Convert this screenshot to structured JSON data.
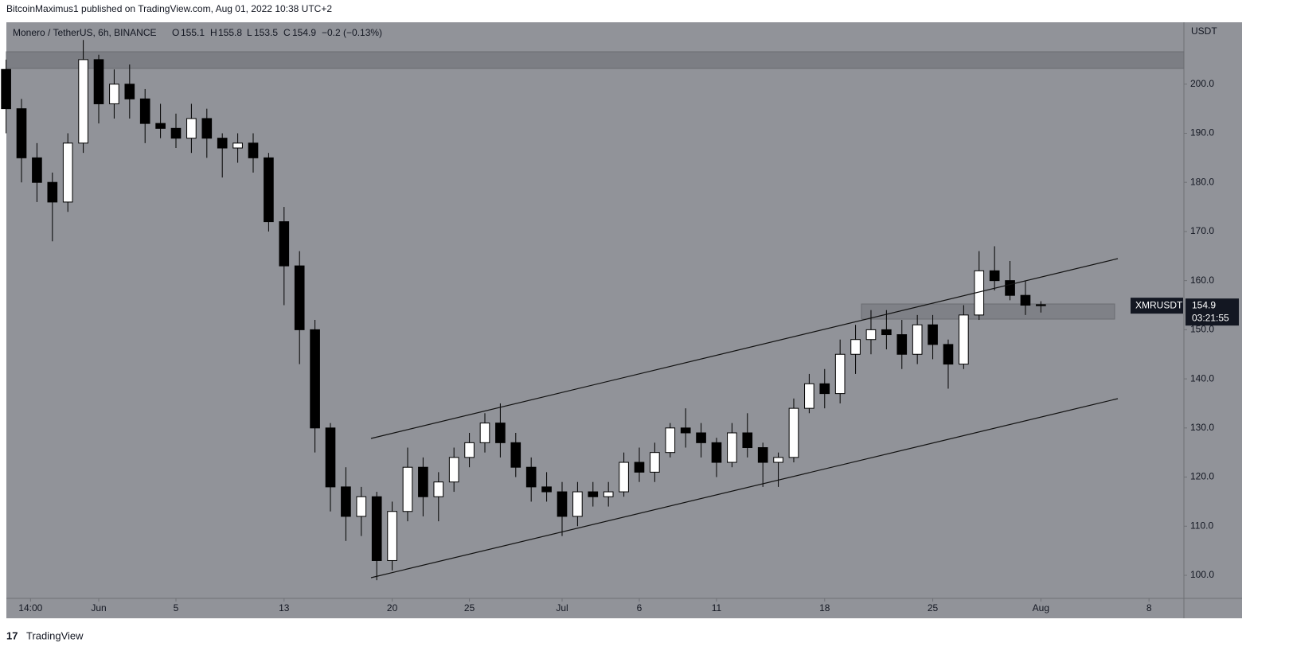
{
  "page": {
    "byline": "BitcoinMaximus1 published on TradingView.com, Aug 01, 2022 10:38 UTC+2",
    "footer": "TradingView"
  },
  "chart_data": {
    "type": "candlestick",
    "header": {
      "symbol": "Monero / TetherUS, 6h, BINANCE",
      "o_label": "O",
      "o": 155.1,
      "h_label": "H",
      "h": 155.8,
      "l_label": "L",
      "l": 153.5,
      "c_label": "C",
      "c": 154.9,
      "change": "−0.2 (−0.13%)"
    },
    "axis_unit": "USDT",
    "price_tag": {
      "symbol": "XMRUSDT",
      "price": 154.9,
      "countdown": "03:21:55"
    },
    "x": [
      -6,
      -5,
      -4,
      -3,
      -2,
      -1,
      0,
      1,
      2,
      3,
      4,
      5,
      6,
      7,
      8,
      9,
      10,
      11,
      12,
      13,
      14,
      15,
      16,
      17,
      18,
      19,
      20,
      21,
      22,
      23,
      24,
      25,
      26,
      27,
      28,
      29,
      30,
      31,
      32,
      33,
      34,
      35,
      36,
      37,
      38,
      39,
      40,
      41,
      42,
      43,
      44,
      45,
      46,
      47,
      48,
      49,
      50,
      51,
      52,
      53,
      54,
      55,
      56,
      57,
      58,
      59,
      60,
      61
    ],
    "open": [
      203,
      195,
      185,
      180,
      176,
      188,
      205,
      196,
      200,
      197,
      192,
      191,
      189,
      193,
      189,
      187,
      188,
      185,
      172,
      163,
      150,
      130,
      118,
      112,
      116,
      103,
      113,
      122,
      116,
      119,
      124,
      127,
      131,
      127,
      122,
      118,
      117,
      112,
      117,
      116,
      117,
      123,
      121,
      125,
      130,
      129,
      127,
      123,
      129,
      126,
      123,
      124,
      134,
      139,
      137,
      145,
      148,
      150,
      149,
      145,
      151,
      147,
      143,
      153,
      162,
      160,
      157,
      155.1
    ],
    "high": [
      205,
      197,
      188,
      182,
      190,
      209,
      206,
      203,
      204,
      199,
      196,
      194,
      196,
      195,
      190,
      190,
      190,
      186,
      175,
      166,
      152,
      131,
      122,
      118,
      117,
      115,
      126,
      124,
      121,
      126,
      129,
      133,
      135,
      129,
      124,
      121,
      119,
      119,
      119,
      119,
      125,
      126,
      127,
      131,
      134,
      131,
      128,
      131,
      133,
      127,
      125,
      136,
      141,
      142,
      148,
      151,
      154,
      154,
      152,
      153,
      153,
      148,
      155,
      166,
      167,
      164,
      160,
      155.8
    ],
    "low": [
      190,
      180,
      176,
      168,
      174,
      186,
      192,
      193,
      193,
      188,
      189,
      187,
      186,
      185,
      181,
      184,
      182,
      170,
      155,
      143,
      125,
      113,
      107,
      108,
      99,
      101,
      111,
      112,
      111,
      117,
      122,
      125,
      124,
      120,
      115,
      115,
      108,
      110,
      114,
      114,
      116,
      119,
      119,
      124,
      126,
      124,
      120,
      122,
      124,
      118,
      118,
      123,
      133,
      134,
      135,
      141,
      145,
      146,
      142,
      143,
      144,
      138,
      142,
      152,
      158,
      156,
      153,
      153.5
    ],
    "close": [
      195,
      185,
      180,
      176,
      188,
      205,
      196,
      200,
      197,
      192,
      191,
      189,
      193,
      189,
      187,
      188,
      185,
      172,
      163,
      150,
      130,
      118,
      112,
      116,
      103,
      113,
      122,
      116,
      119,
      124,
      127,
      131,
      127,
      122,
      118,
      117,
      112,
      117,
      116,
      117,
      123,
      121,
      125,
      130,
      129,
      127,
      123,
      129,
      126,
      123,
      124,
      134,
      139,
      137,
      145,
      148,
      150,
      149,
      145,
      151,
      147,
      143,
      153,
      162,
      160,
      157,
      155,
      154.9
    ],
    "up_color": "#ffffff",
    "down_color": "#000000",
    "xlim": [
      -5.98,
      70.26
    ],
    "xticks": [
      {
        "value": -4.4167,
        "label": "14:00"
      },
      {
        "value": 0,
        "label": "Jun"
      },
      5,
      {
        "value": 12,
        "label": "13"
      },
      {
        "value": 19,
        "label": "20"
      },
      {
        "value": 24,
        "label": "25"
      },
      {
        "value": 30,
        "label": "Jul"
      },
      {
        "value": 35,
        "label": "6"
      },
      {
        "value": 40,
        "label": "11"
      },
      {
        "value": 47,
        "label": "18"
      },
      {
        "value": 54,
        "label": "25"
      },
      {
        "value": 61,
        "label": "Aug"
      },
      {
        "value": 68,
        "label": "8"
      }
    ],
    "ylim": [
      95.3,
      212.6
    ],
    "yticks": [
      {
        "value": 100,
        "label": "100.0"
      },
      {
        "value": 110,
        "label": "110.0"
      },
      {
        "value": 120,
        "label": "120.0"
      },
      {
        "value": 130,
        "label": "130.0"
      },
      {
        "value": 140,
        "label": "140.0"
      },
      {
        "value": 150,
        "label": "150.0"
      },
      {
        "value": 160,
        "label": "160.0"
      },
      {
        "value": 170,
        "label": "170.0"
      },
      {
        "value": 180,
        "label": "180.0"
      },
      {
        "value": 190,
        "label": "190.0"
      },
      {
        "value": 200,
        "label": "200.0"
      }
    ]
  }
}
